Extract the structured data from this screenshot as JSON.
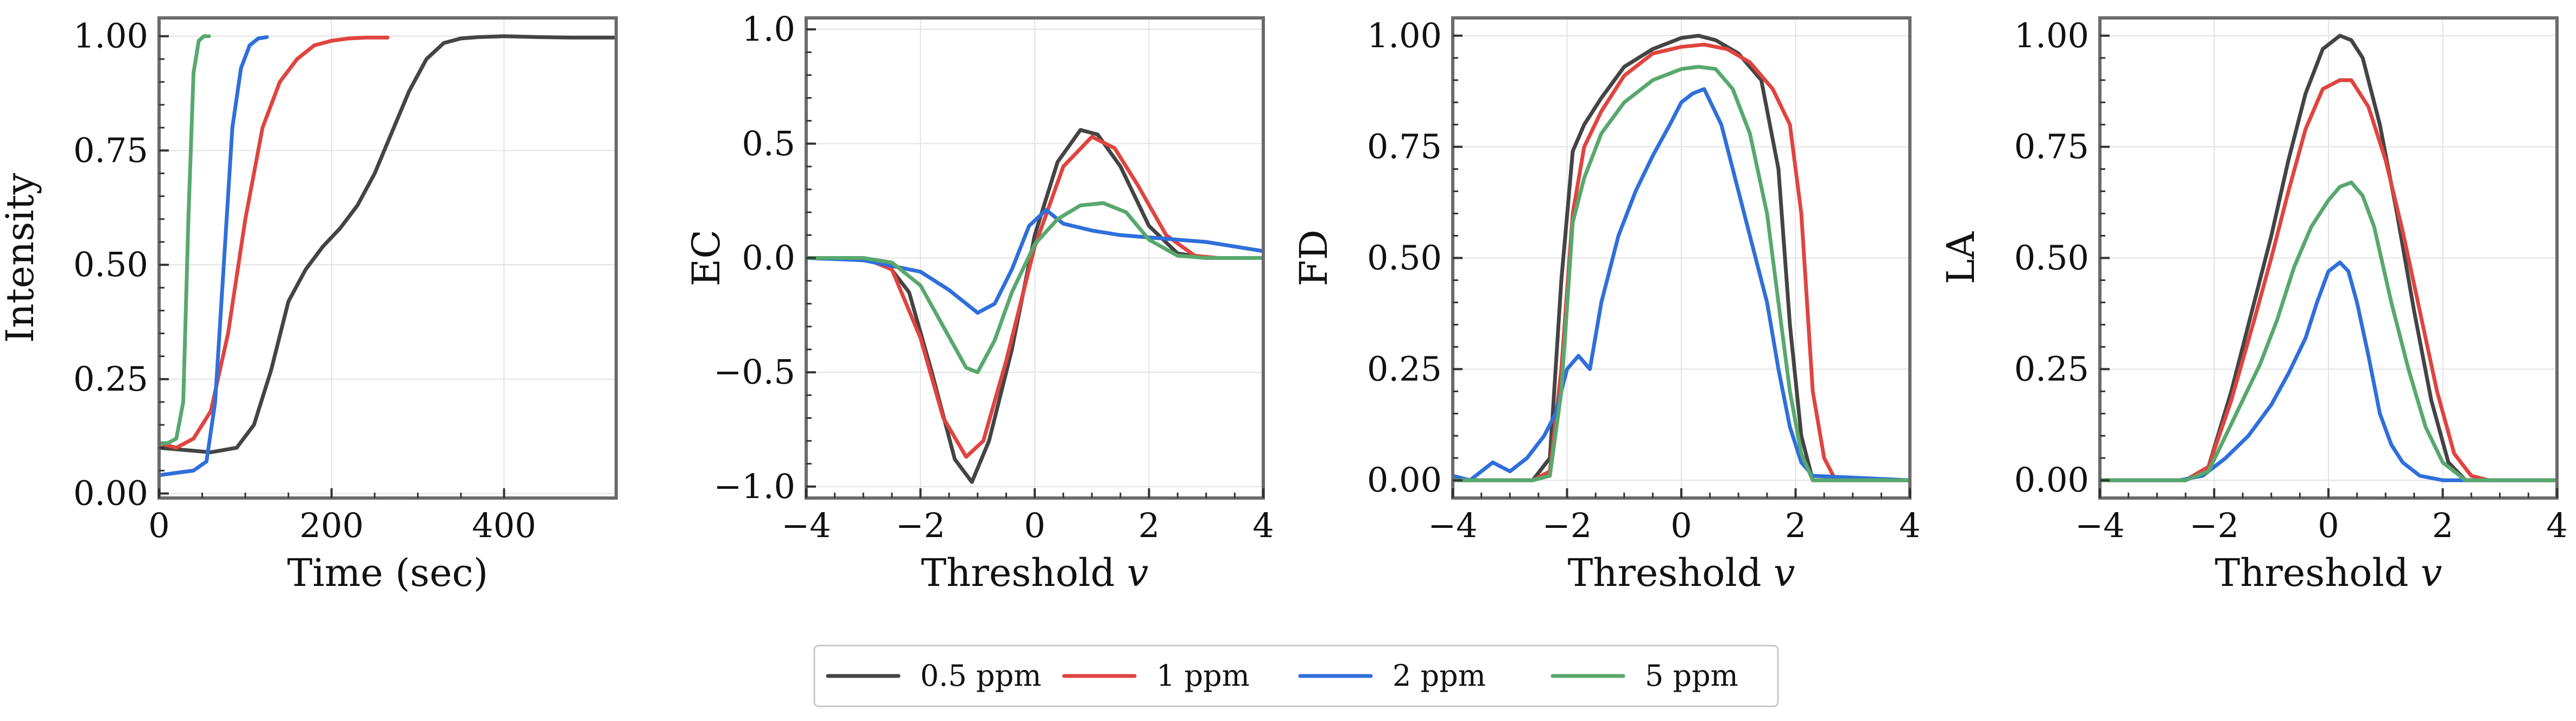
{
  "legend": [
    {
      "label": "0.5 ppm",
      "color": "#444444"
    },
    {
      "label": "1 ppm",
      "color": "#e0443f"
    },
    {
      "label": "2 ppm",
      "color": "#2f6fdb"
    },
    {
      "label": "5 ppm",
      "color": "#58a86d"
    }
  ],
  "chart_data": [
    {
      "type": "line",
      "xlabel": "Time (sec)",
      "ylabel": "Intensity",
      "xlim": [
        0,
        530
      ],
      "ylim": [
        -0.01,
        1.04
      ],
      "xticks": [
        0,
        200,
        400
      ],
      "yticks": [
        0.0,
        0.25,
        0.5,
        0.75,
        1.0
      ],
      "xtick_labels": [
        "0",
        "200",
        "400"
      ],
      "ytick_labels": [
        "0.00",
        "0.25",
        "0.50",
        "0.75",
        "1.00"
      ],
      "grid": true,
      "series": [
        {
          "name": "0.5 ppm",
          "color": "#444444",
          "x": [
            0,
            30,
            60,
            90,
            110,
            130,
            150,
            170,
            190,
            210,
            230,
            250,
            270,
            290,
            310,
            330,
            350,
            370,
            400,
            440,
            480,
            530
          ],
          "y": [
            0.1,
            0.095,
            0.09,
            0.1,
            0.15,
            0.27,
            0.42,
            0.49,
            0.54,
            0.58,
            0.63,
            0.7,
            0.79,
            0.88,
            0.95,
            0.985,
            0.995,
            0.998,
            1.0,
            0.998,
            0.997,
            0.997
          ]
        },
        {
          "name": "1 ppm",
          "color": "#e0443f",
          "x": [
            0,
            20,
            40,
            60,
            80,
            100,
            120,
            140,
            160,
            180,
            200,
            220,
            240,
            265
          ],
          "y": [
            0.11,
            0.1,
            0.12,
            0.18,
            0.35,
            0.6,
            0.8,
            0.9,
            0.95,
            0.98,
            0.99,
            0.995,
            0.997,
            0.997
          ]
        },
        {
          "name": "2 ppm",
          "color": "#2f6fdb",
          "x": [
            0,
            20,
            40,
            55,
            65,
            75,
            85,
            95,
            105,
            115,
            125
          ],
          "y": [
            0.04,
            0.045,
            0.05,
            0.07,
            0.2,
            0.5,
            0.8,
            0.93,
            0.98,
            0.995,
            0.998
          ]
        },
        {
          "name": "5 ppm",
          "color": "#58a86d",
          "x": [
            0,
            10,
            20,
            28,
            34,
            40,
            46,
            52,
            58
          ],
          "y": [
            0.11,
            0.11,
            0.12,
            0.2,
            0.6,
            0.92,
            0.99,
            1.0,
            1.0
          ]
        }
      ]
    },
    {
      "type": "line",
      "xlabel": "Threshold v",
      "ylabel": "EC",
      "xlim": [
        -4,
        4
      ],
      "ylim": [
        -1.05,
        1.05
      ],
      "xticks": [
        -4,
        -2,
        0,
        2,
        4
      ],
      "yticks": [
        -1.0,
        -0.5,
        0.0,
        0.5,
        1.0
      ],
      "xtick_labels": [
        "−4",
        "−2",
        "0",
        "2",
        "4"
      ],
      "ytick_labels": [
        "−1.0",
        "−0.5",
        "0.0",
        "0.5",
        "1.0"
      ],
      "grid": true,
      "series": [
        {
          "name": "0.5 ppm",
          "color": "#444444",
          "x": [
            -4,
            -3,
            -2.6,
            -2.2,
            -1.8,
            -1.4,
            -1.1,
            -0.8,
            -0.4,
            0,
            0.4,
            0.8,
            1.1,
            1.5,
            2,
            2.5,
            3,
            4
          ],
          "y": [
            0,
            0,
            -0.02,
            -0.15,
            -0.5,
            -0.88,
            -0.98,
            -0.8,
            -0.4,
            0.1,
            0.42,
            0.56,
            0.54,
            0.4,
            0.14,
            0.02,
            0,
            0
          ]
        },
        {
          "name": "1 ppm",
          "color": "#e0443f",
          "x": [
            -4,
            -3,
            -2.5,
            -2,
            -1.6,
            -1.2,
            -0.9,
            -0.5,
            0,
            0.5,
            1,
            1.4,
            1.8,
            2.3,
            2.8,
            3.2,
            4
          ],
          "y": [
            0,
            0,
            -0.05,
            -0.35,
            -0.7,
            -0.87,
            -0.8,
            -0.45,
            0.05,
            0.4,
            0.53,
            0.48,
            0.32,
            0.1,
            0.01,
            0,
            0
          ]
        },
        {
          "name": "2 ppm",
          "color": "#2f6fdb",
          "x": [
            -4,
            -3,
            -2,
            -1.5,
            -1,
            -0.7,
            -0.4,
            -0.1,
            0.2,
            0.5,
            1,
            1.5,
            2,
            3,
            4
          ],
          "y": [
            0,
            -0.01,
            -0.06,
            -0.14,
            -0.24,
            -0.2,
            -0.05,
            0.14,
            0.21,
            0.15,
            0.12,
            0.1,
            0.09,
            0.07,
            0.03
          ]
        },
        {
          "name": "5 ppm",
          "color": "#58a86d",
          "x": [
            -4,
            -3,
            -2.5,
            -2,
            -1.6,
            -1.2,
            -1,
            -0.7,
            -0.4,
            0,
            0.4,
            0.8,
            1.2,
            1.6,
            2,
            2.5,
            3,
            4
          ],
          "y": [
            0,
            0,
            -0.02,
            -0.12,
            -0.3,
            -0.48,
            -0.5,
            -0.36,
            -0.15,
            0.06,
            0.17,
            0.23,
            0.24,
            0.2,
            0.08,
            0.01,
            0,
            0
          ]
        }
      ]
    },
    {
      "type": "line",
      "xlabel": "Threshold v",
      "ylabel": "FD",
      "xlim": [
        -4,
        4
      ],
      "ylim": [
        -0.04,
        1.04
      ],
      "xticks": [
        -4,
        -2,
        0,
        2,
        4
      ],
      "yticks": [
        0.0,
        0.25,
        0.5,
        0.75,
        1.0
      ],
      "xtick_labels": [
        "−4",
        "−2",
        "0",
        "2",
        "4"
      ],
      "ytick_labels": [
        "0.00",
        "0.25",
        "0.50",
        "0.75",
        "1.00"
      ],
      "grid": true,
      "series": [
        {
          "name": "0.5 ppm",
          "color": "#444444",
          "x": [
            -4,
            -2.6,
            -2.3,
            -2.1,
            -1.9,
            -1.7,
            -1.4,
            -1,
            -0.5,
            0,
            0.3,
            0.6,
            1,
            1.4,
            1.7,
            1.9,
            2.1,
            2.3,
            2.5,
            4
          ],
          "y": [
            0,
            0,
            0.05,
            0.45,
            0.74,
            0.8,
            0.86,
            0.93,
            0.97,
            0.995,
            1.0,
            0.99,
            0.96,
            0.9,
            0.7,
            0.35,
            0.1,
            0,
            0,
            0
          ]
        },
        {
          "name": "1 ppm",
          "color": "#e0443f",
          "x": [
            -4,
            -2.6,
            -2.3,
            -2.1,
            -1.9,
            -1.7,
            -1.4,
            -1,
            -0.5,
            0,
            0.4,
            0.8,
            1.2,
            1.6,
            1.9,
            2.1,
            2.3,
            2.5,
            2.7,
            4
          ],
          "y": [
            0,
            0,
            0.02,
            0.25,
            0.6,
            0.75,
            0.83,
            0.91,
            0.96,
            0.975,
            0.98,
            0.97,
            0.94,
            0.88,
            0.8,
            0.6,
            0.2,
            0.05,
            0,
            0
          ]
        },
        {
          "name": "2 ppm",
          "color": "#2f6fdb",
          "x": [
            -4,
            -3.7,
            -3.3,
            -3,
            -2.7,
            -2.4,
            -2.2,
            -2,
            -1.8,
            -1.6,
            -1.4,
            -1.1,
            -0.8,
            -0.5,
            -0.2,
            0,
            0.2,
            0.4,
            0.7,
            1,
            1.3,
            1.5,
            1.7,
            1.9,
            2.1,
            2.3,
            4
          ],
          "y": [
            0.01,
            0,
            0.04,
            0.02,
            0.05,
            0.1,
            0.15,
            0.25,
            0.28,
            0.25,
            0.4,
            0.55,
            0.65,
            0.73,
            0.8,
            0.85,
            0.87,
            0.88,
            0.8,
            0.65,
            0.5,
            0.4,
            0.25,
            0.12,
            0.04,
            0.01,
            0
          ]
        },
        {
          "name": "5 ppm",
          "color": "#58a86d",
          "x": [
            -4,
            -2.6,
            -2.3,
            -2.1,
            -1.9,
            -1.7,
            -1.4,
            -1,
            -0.5,
            0,
            0.3,
            0.6,
            0.9,
            1.2,
            1.5,
            1.7,
            1.9,
            2.1,
            2.3,
            4
          ],
          "y": [
            0,
            0,
            0.01,
            0.2,
            0.58,
            0.68,
            0.78,
            0.85,
            0.9,
            0.925,
            0.93,
            0.925,
            0.88,
            0.78,
            0.6,
            0.4,
            0.2,
            0.06,
            0,
            0
          ]
        }
      ]
    },
    {
      "type": "line",
      "xlabel": "Threshold v",
      "ylabel": "LA",
      "xlim": [
        -4,
        4
      ],
      "ylim": [
        -0.04,
        1.04
      ],
      "xticks": [
        -4,
        -2,
        0,
        2,
        4
      ],
      "yticks": [
        0.0,
        0.25,
        0.5,
        0.75,
        1.0
      ],
      "xtick_labels": [
        "−4",
        "−2",
        "0",
        "2",
        "4"
      ],
      "ytick_labels": [
        "0.00",
        "0.25",
        "0.50",
        "0.75",
        "1.00"
      ],
      "grid": true,
      "series": [
        {
          "name": "0.5 ppm",
          "color": "#444444",
          "x": [
            -4,
            -2.5,
            -2.1,
            -1.7,
            -1.3,
            -1,
            -0.7,
            -0.4,
            -0.1,
            0.2,
            0.4,
            0.6,
            0.9,
            1.2,
            1.5,
            1.8,
            2.1,
            2.4,
            4
          ],
          "y": [
            0,
            0,
            0.03,
            0.2,
            0.4,
            0.55,
            0.72,
            0.87,
            0.97,
            1.0,
            0.99,
            0.95,
            0.8,
            0.6,
            0.38,
            0.18,
            0.04,
            0,
            0
          ]
        },
        {
          "name": "1 ppm",
          "color": "#e0443f",
          "x": [
            -4,
            -2.5,
            -2.1,
            -1.7,
            -1.3,
            -1,
            -0.7,
            -0.4,
            -0.1,
            0.2,
            0.4,
            0.7,
            1,
            1.3,
            1.6,
            1.9,
            2.2,
            2.5,
            2.8,
            4
          ],
          "y": [
            0,
            0,
            0.03,
            0.18,
            0.36,
            0.5,
            0.65,
            0.79,
            0.88,
            0.9,
            0.9,
            0.84,
            0.72,
            0.56,
            0.38,
            0.2,
            0.06,
            0.01,
            0,
            0
          ]
        },
        {
          "name": "2 ppm",
          "color": "#2f6fdb",
          "x": [
            -4,
            -2.6,
            -2.2,
            -1.8,
            -1.4,
            -1,
            -0.7,
            -0.4,
            -0.2,
            0,
            0.2,
            0.35,
            0.5,
            0.7,
            0.9,
            1.1,
            1.3,
            1.6,
            2,
            4
          ],
          "y": [
            0,
            0,
            0.01,
            0.05,
            0.1,
            0.17,
            0.24,
            0.32,
            0.4,
            0.47,
            0.49,
            0.47,
            0.4,
            0.28,
            0.15,
            0.08,
            0.04,
            0.01,
            0,
            0
          ]
        },
        {
          "name": "5 ppm",
          "color": "#58a86d",
          "x": [
            -4,
            -2.5,
            -2.1,
            -1.8,
            -1.5,
            -1.2,
            -0.9,
            -0.6,
            -0.3,
            0,
            0.2,
            0.4,
            0.6,
            0.8,
            1.1,
            1.4,
            1.7,
            2,
            2.4,
            4
          ],
          "y": [
            0,
            0,
            0.02,
            0.1,
            0.18,
            0.26,
            0.36,
            0.48,
            0.57,
            0.63,
            0.66,
            0.67,
            0.64,
            0.57,
            0.4,
            0.25,
            0.12,
            0.04,
            0,
            0
          ]
        }
      ]
    }
  ]
}
